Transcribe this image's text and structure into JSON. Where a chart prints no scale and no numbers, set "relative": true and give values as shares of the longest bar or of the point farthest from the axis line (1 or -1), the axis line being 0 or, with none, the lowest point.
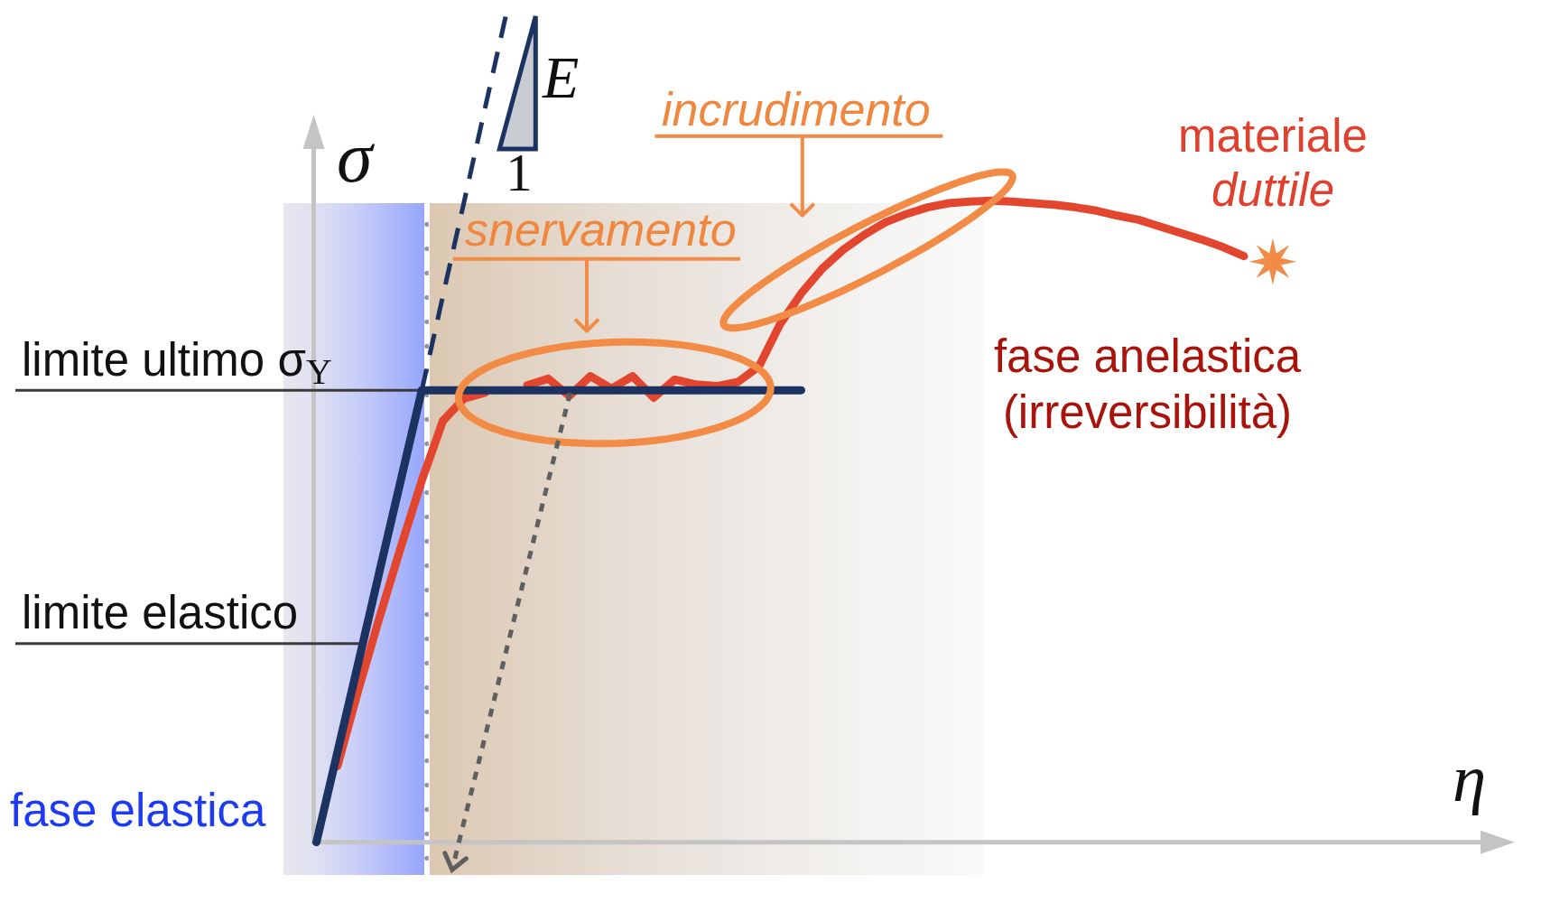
{
  "chart_data": {
    "type": "line",
    "xlabel": "η",
    "ylabel": "σ",
    "relative": true,
    "marker": "none",
    "categories": [
      null,
      null,
      null,
      null,
      null,
      null,
      null,
      null,
      null,
      null,
      null,
      null,
      null,
      null,
      null,
      null,
      null,
      null,
      null,
      null,
      null,
      null,
      null,
      null,
      null,
      null,
      null,
      null,
      null,
      null,
      null,
      null,
      null,
      null,
      null,
      null,
      null,
      null,
      null,
      null,
      null,
      null,
      null,
      null,
      null,
      null,
      null,
      null,
      null,
      null,
      null,
      null,
      null,
      null,
      null,
      null,
      null
    ],
    "series": [
      {
        "color": "#1c3260",
        "values": [
          0,
          0.109,
          0.218,
          0.328,
          0.437,
          0.546,
          0.546,
          0.546,
          0.546,
          0.546,
          0.546,
          0.546,
          0.546,
          0.546,
          0.546,
          0.546,
          0.546,
          0.546,
          0.546,
          0.546,
          0.546,
          0.546,
          0.546,
          0.546,
          null,
          null,
          null,
          null,
          null,
          null,
          null,
          null,
          null,
          null,
          null,
          null,
          null,
          null,
          null,
          null,
          null,
          null,
          null,
          null,
          null,
          null,
          null,
          null,
          null,
          null,
          null,
          null,
          null,
          null,
          null,
          null,
          null
        ]
      },
      {
        "color": "#1c3260",
        "line_style": "dashed",
        "values": [
          null,
          null,
          null,
          null,
          null,
          0.546,
          0.66,
          0.773,
          0.887,
          1,
          null,
          null,
          null,
          null,
          null,
          null,
          null,
          null,
          null,
          null,
          null,
          null,
          null,
          null,
          null,
          null,
          null,
          null,
          null,
          null,
          null,
          null,
          null,
          null,
          null,
          null,
          null,
          null,
          null,
          null,
          null,
          null,
          null,
          null,
          null,
          null,
          null,
          null,
          null,
          null,
          null,
          null,
          null,
          null,
          null,
          null,
          null
        ]
      },
      {
        "color": "#e3462f",
        "values": [
          null,
          0.092,
          0.185,
          0.272,
          0.356,
          0.437,
          0.509,
          0.536,
          0.543,
          null,
          0.552,
          0.56,
          0.539,
          0.563,
          0.548,
          0.563,
          0.537,
          0.559,
          0.553,
          0.551,
          0.556,
          0.575,
          0.626,
          0.663,
          0.693,
          0.716,
          0.734,
          0.749,
          0.759,
          0.767,
          0.772,
          0.774,
          0.775,
          0.774,
          0.772,
          0.77,
          0.767,
          0.763,
          0.757,
          0.752,
          0.744,
          0.736,
          0.728,
          0.719,
          0.708,
          null,
          null,
          null,
          null,
          null,
          null,
          null,
          null,
          null,
          null,
          null,
          null
        ]
      }
    ],
    "ref_lines": [
      {
        "axis": "y",
        "value": 0.546,
        "label": "limite ultimo σ$_{Y}$",
        "color": "#3a3a3a"
      },
      {
        "axis": "y",
        "value": 0.24,
        "label": "limite elastico",
        "color": "#3a3a3a"
      }
    ],
    "annotations": [
      "snervamento",
      "incrudimento",
      "materiale duttile",
      "fase anelastica (irreversibilità)",
      "fase elastica",
      "E",
      "1"
    ]
  }
}
